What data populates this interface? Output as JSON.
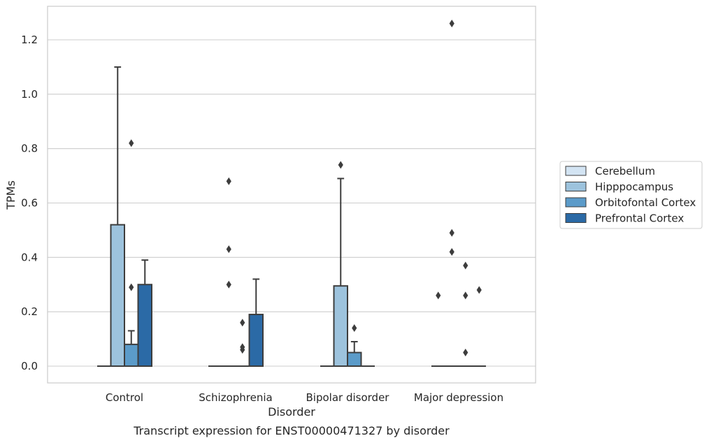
{
  "chart_data": {
    "type": "box",
    "title": "",
    "caption": "Transcript expression for ENST00000471327 by disorder",
    "xlabel": "Disorder",
    "ylabel": "TPMs",
    "ylim": [
      -0.06,
      1.32
    ],
    "yticks": [
      0.0,
      0.2,
      0.4,
      0.6,
      0.8,
      1.0,
      1.2
    ],
    "ytick_labels": [
      "0.0",
      "0.2",
      "0.4",
      "0.6",
      "0.8",
      "1.0",
      "1.2"
    ],
    "grid": true,
    "legend_position": "right",
    "categories": [
      "Control",
      "Schizophrenia",
      "Bipolar disorder",
      "Major depression"
    ],
    "series": [
      {
        "name": "Cerebellum",
        "color": "#d3e4f3",
        "boxes": [
          {
            "min": 0,
            "q1": 0,
            "median": 0,
            "q3": 0,
            "max": 0,
            "outliers": []
          },
          {
            "min": 0,
            "q1": 0,
            "median": 0,
            "q3": 0,
            "max": 0,
            "outliers": []
          },
          {
            "min": 0,
            "q1": 0,
            "median": 0,
            "q3": 0,
            "max": 0,
            "outliers": []
          },
          {
            "min": 0,
            "q1": 0,
            "median": 0,
            "q3": 0,
            "max": 0,
            "outliers": [
              0.26
            ]
          }
        ]
      },
      {
        "name": "Hipppocampus",
        "color": "#9dc3dd",
        "boxes": [
          {
            "min": 0,
            "q1": 0,
            "median": 0,
            "q3": 0.52,
            "max": 1.1,
            "outliers": []
          },
          {
            "min": 0,
            "q1": 0,
            "median": 0,
            "q3": 0,
            "max": 0,
            "outliers": [
              0.3,
              0.43,
              0.68
            ]
          },
          {
            "min": 0,
            "q1": 0,
            "median": 0,
            "q3": 0.295,
            "max": 0.69,
            "outliers": [
              0.74
            ]
          },
          {
            "min": 0,
            "q1": 0,
            "median": 0,
            "q3": 0,
            "max": 0,
            "outliers": [
              0.42,
              0.49,
              1.26
            ]
          }
        ]
      },
      {
        "name": "Orbitofontal Cortex",
        "color": "#5b9bc9",
        "boxes": [
          {
            "min": 0,
            "q1": 0,
            "median": 0,
            "q3": 0.08,
            "max": 0.13,
            "outliers": [
              0.29,
              0.82
            ]
          },
          {
            "min": 0,
            "q1": 0,
            "median": 0,
            "q3": 0,
            "max": 0,
            "outliers": [
              0.06,
              0.07,
              0.16
            ]
          },
          {
            "min": 0,
            "q1": 0,
            "median": 0,
            "q3": 0.05,
            "max": 0.09,
            "outliers": [
              0.14
            ]
          },
          {
            "min": 0,
            "q1": 0,
            "median": 0,
            "q3": 0,
            "max": 0,
            "outliers": [
              0.05,
              0.26,
              0.37
            ]
          }
        ]
      },
      {
        "name": "Prefrontal Cortex",
        "color": "#2b6aa6",
        "boxes": [
          {
            "min": 0,
            "q1": 0,
            "median": 0,
            "q3": 0.3,
            "max": 0.39,
            "outliers": []
          },
          {
            "min": 0,
            "q1": 0,
            "median": 0,
            "q3": 0.19,
            "max": 0.32,
            "outliers": []
          },
          {
            "min": 0,
            "q1": 0,
            "median": 0,
            "q3": 0,
            "max": 0,
            "outliers": []
          },
          {
            "min": 0,
            "q1": 0,
            "median": 0,
            "q3": 0,
            "max": 0,
            "outliers": [
              0.28
            ]
          }
        ]
      }
    ]
  }
}
